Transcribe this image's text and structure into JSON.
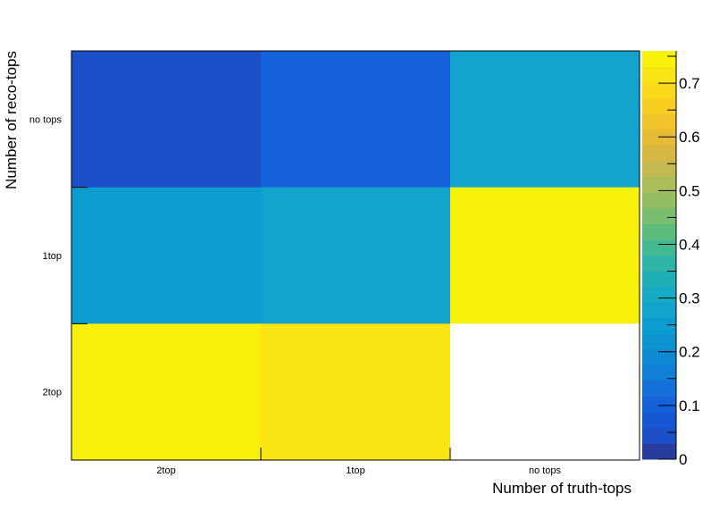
{
  "chart_data": {
    "type": "heatmap",
    "title": "",
    "xlabel": "Number of truth-tops",
    "ylabel": "Number of reco-tops",
    "x_categories": [
      "2top",
      "1top",
      "no tops"
    ],
    "y_categories_top_to_bottom": [
      "no tops",
      "1top",
      "2top"
    ],
    "values_top_to_bottom": [
      [
        0.03,
        0.09,
        0.27
      ],
      [
        0.26,
        0.29,
        0.75
      ],
      [
        0.75,
        0.72,
        null
      ]
    ],
    "colorbar": {
      "range": [
        0,
        0.76
      ],
      "ticks": [
        0,
        0.1,
        0.2,
        0.3,
        0.4,
        0.5,
        0.6,
        0.7
      ],
      "tick_labels": [
        "0",
        "0.1",
        "0.2",
        "0.3",
        "0.4",
        "0.5",
        "0.6",
        "0.7"
      ],
      "palette": [
        "#2a3b9e",
        "#1c4fc8",
        "#1556d3",
        "#1561d9",
        "#1670d9",
        "#117ed7",
        "#0e89d3",
        "#0e94d1",
        "#0b9dcf",
        "#12a4cc",
        "#16abc4",
        "#20afb7",
        "#2eb5a6",
        "#44b891",
        "#5dbb7e",
        "#78bd70",
        "#94be63",
        "#acbc58",
        "#c3ba4f",
        "#d7b744",
        "#e6bb36",
        "#f2c42b",
        "#f8cf20",
        "#fad91a",
        "#f9e514",
        "#f8f10c"
      ],
      "empty_color": "#ffffff"
    },
    "grid": false,
    "legend": "colorbar-right"
  }
}
